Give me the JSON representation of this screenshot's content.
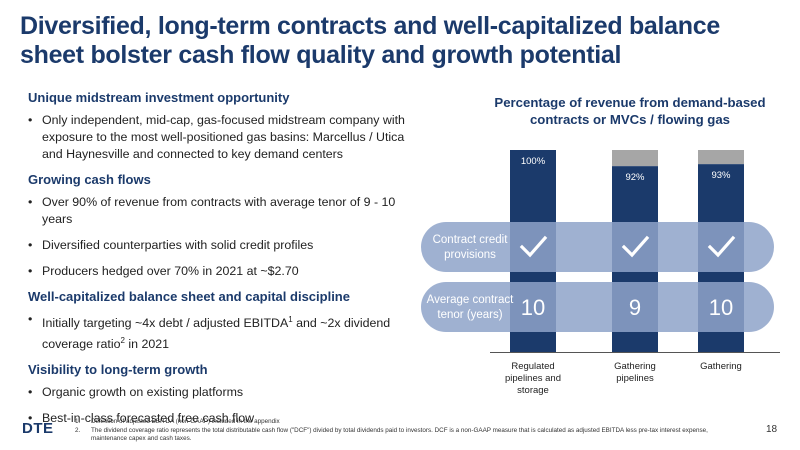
{
  "title": "Diversified, long-term contracts and well-capitalized balance sheet bolster cash flow quality and growth potential",
  "sections": [
    {
      "heading": "Unique midstream investment opportunity",
      "bullets": [
        "Only independent, mid-cap, gas-focused midstream company with exposure to the most well-positioned gas basins: Marcellus / Utica and Haynesville and connected to key demand centers"
      ]
    },
    {
      "heading": "Growing cash flows",
      "bullets": [
        "Over 90% of revenue from contracts with average tenor of 9 - 10 years",
        "Diversified counterparties with solid credit profiles",
        "Producers hedged over 70% in 2021 at ~$2.70"
      ]
    },
    {
      "heading": "Well-capitalized balance sheet and capital discipline",
      "bullets": [
        {
          "pre": "Initially targeting ~4x debt / adjusted EBITDA",
          "sup1": "1",
          "mid": " and ~2x dividend coverage ratio",
          "sup2": "2",
          "post": " in 2021"
        }
      ]
    },
    {
      "heading": "Visibility to long-term growth",
      "bullets": [
        "Organic growth on existing platforms",
        "Best-in-class forecasted free cash flow"
      ]
    }
  ],
  "chart_data": {
    "type": "bar",
    "title": "Percentage of revenue from demand-based contracts or MVCs / flowing gas",
    "categories": [
      "Regulated pipelines and storage",
      "Gathering pipelines",
      "Gathering"
    ],
    "category_lines": [
      [
        "Regulated",
        "pipelines and",
        "storage"
      ],
      [
        "Gathering",
        "pipelines"
      ],
      [
        "Gathering"
      ]
    ],
    "values": [
      100,
      92,
      93
    ],
    "value_labels": [
      "100%",
      "92%",
      "93%"
    ],
    "ylim": [
      0,
      100
    ],
    "rows": [
      {
        "label_lines": [
          "Contract credit",
          "provisions"
        ],
        "values": [
          "check",
          "check",
          "check"
        ]
      },
      {
        "label_lines": [
          "Average contract",
          "tenor (years)"
        ],
        "values": [
          "10",
          "9",
          "10"
        ]
      }
    ],
    "colors": {
      "bar": "#1b3a6b",
      "remainder": "#a6a6a6",
      "band": "#8ea3c9"
    }
  },
  "footer": {
    "logo": "DTE",
    "footnotes": [
      {
        "num": "1.",
        "text": "Definition of adjusted EBITDA (non-GAAP) included in the appendix"
      },
      {
        "num": "2.",
        "text": "The dividend coverage ratio represents the total distributable cash flow (\"DCF\") divided by total dividends paid to investors.  DCF is a non-GAAP measure that is calculated as adjusted EBITDA less pre-tax interest expense, maintenance capex and cash taxes."
      }
    ],
    "page_number": "18"
  }
}
